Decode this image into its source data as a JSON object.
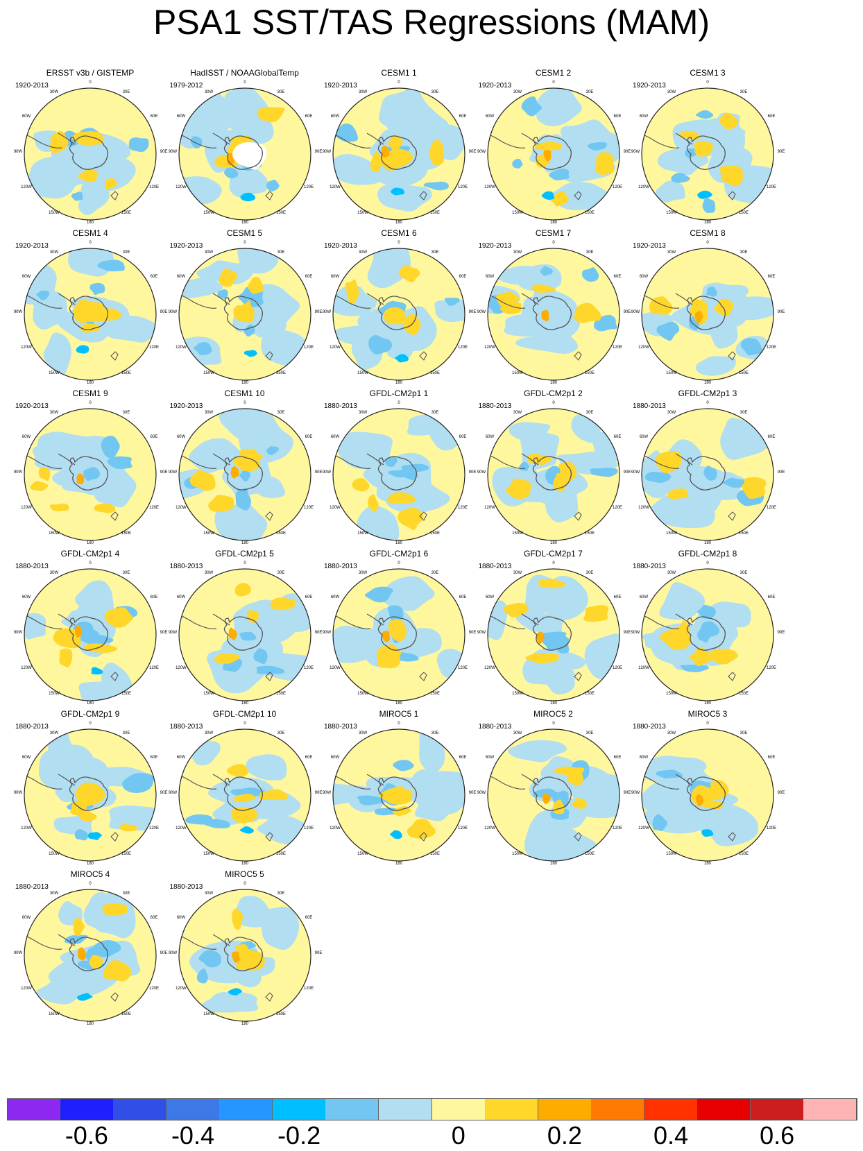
{
  "title": "PSA1 SST/TAS Regressions (MAM)",
  "lon_labels": {
    "top": "0",
    "upper_left": "30W",
    "upper_right": "30E",
    "left_upper": "60W",
    "right_upper": "60E",
    "left": "90W",
    "right": "90E",
    "left_lower": "120W",
    "right_lower": "120E",
    "lower_left": "150W",
    "lower_right": "150E",
    "bottom": "180"
  },
  "colors": {
    "land_outline": "#555555",
    "map_border": "#222222",
    "missing": "#ffffff"
  },
  "panels": [
    {
      "title": "ERSST v3b / GISTEMP",
      "period": "1920-2013"
    },
    {
      "title": "HadISST / NOAAGlobalTemp",
      "period": "1979-2012"
    },
    {
      "title": "CESM1 1",
      "period": "1920-2013"
    },
    {
      "title": "CESM1 2",
      "period": "1920-2013"
    },
    {
      "title": "CESM1 3",
      "period": "1920-2013"
    },
    {
      "title": "CESM1 4",
      "period": "1920-2013"
    },
    {
      "title": "CESM1 5",
      "period": "1920-2013"
    },
    {
      "title": "CESM1 6",
      "period": "1920-2013"
    },
    {
      "title": "CESM1 7",
      "period": "1920-2013"
    },
    {
      "title": "CESM1 8",
      "period": "1920-2013"
    },
    {
      "title": "CESM1 9",
      "period": "1920-2013"
    },
    {
      "title": "CESM1 10",
      "period": "1920-2013"
    },
    {
      "title": "GFDL-CM2p1 1",
      "period": "1880-2013"
    },
    {
      "title": "GFDL-CM2p1 2",
      "period": "1880-2013"
    },
    {
      "title": "GFDL-CM2p1 3",
      "period": "1880-2013"
    },
    {
      "title": "GFDL-CM2p1 4",
      "period": "1880-2013"
    },
    {
      "title": "GFDL-CM2p1 5",
      "period": "1880-2013"
    },
    {
      "title": "GFDL-CM2p1 6",
      "period": "1880-2013"
    },
    {
      "title": "GFDL-CM2p1 7",
      "period": "1880-2013"
    },
    {
      "title": "GFDL-CM2p1 8",
      "period": "1880-2013"
    },
    {
      "title": "GFDL-CM2p1 9",
      "period": "1880-2013"
    },
    {
      "title": "GFDL-CM2p1 10",
      "period": "1880-2013"
    },
    {
      "title": "MIROC5 1",
      "period": "1880-2013"
    },
    {
      "title": "MIROC5 2",
      "period": "1880-2013"
    },
    {
      "title": "MIROC5 3",
      "period": "1880-2013"
    },
    {
      "title": "MIROC5 4",
      "period": "1880-2013"
    },
    {
      "title": "MIROC5 5",
      "period": "1880-2013"
    }
  ],
  "colorbar": {
    "colors": [
      "#8c28f0",
      "#1e1eff",
      "#2f4fe6",
      "#3c78e6",
      "#2596ff",
      "#00bfff",
      "#72c7f2",
      "#b2def2",
      "#fff79d",
      "#ffd62a",
      "#ffac00",
      "#ff7a00",
      "#ff3200",
      "#e60000",
      "#cc1e1e",
      "#ffb4b4"
    ],
    "labels": [
      "-0.6",
      "-0.4",
      "-0.2",
      "0",
      "0.2",
      "0.4",
      "0.6"
    ],
    "label_boundaries": [
      1,
      3,
      5,
      8,
      10,
      12,
      14
    ]
  }
}
